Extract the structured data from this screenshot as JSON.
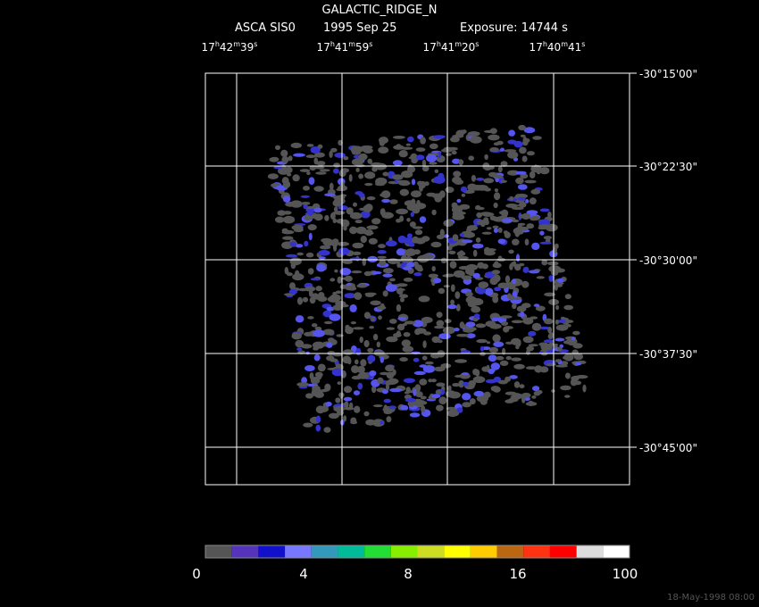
{
  "header": {
    "title": "GALACTIC_RIDGE_N",
    "instrument": "ASCA SIS0",
    "date": "1995 Sep 25",
    "exposure": "Exposure: 14744 s"
  },
  "ra_labels": [
    "17h42m39s",
    "17h41m59s",
    "17h41m20s",
    "17h40m41s"
  ],
  "dec_labels": [
    "-30°15'00\"",
    "-30°22'30\"",
    "-30°30'00\"",
    "-30°37'30\"",
    "-30°45'00\""
  ],
  "colorbar": {
    "colors": [
      "#555555",
      "#5533bb",
      "#1111cc",
      "#7777ff",
      "#3399bb",
      "#00bb99",
      "#22dd33",
      "#88ee00",
      "#ccdd22",
      "#ffff00",
      "#ffcc00",
      "#bb6611",
      "#ff3311",
      "#ff0000",
      "#dddddd",
      "#ffffff"
    ],
    "labels": [
      "0",
      "4",
      "8",
      "16",
      "100"
    ]
  },
  "timestamp": "18-May-1998 08:00"
}
